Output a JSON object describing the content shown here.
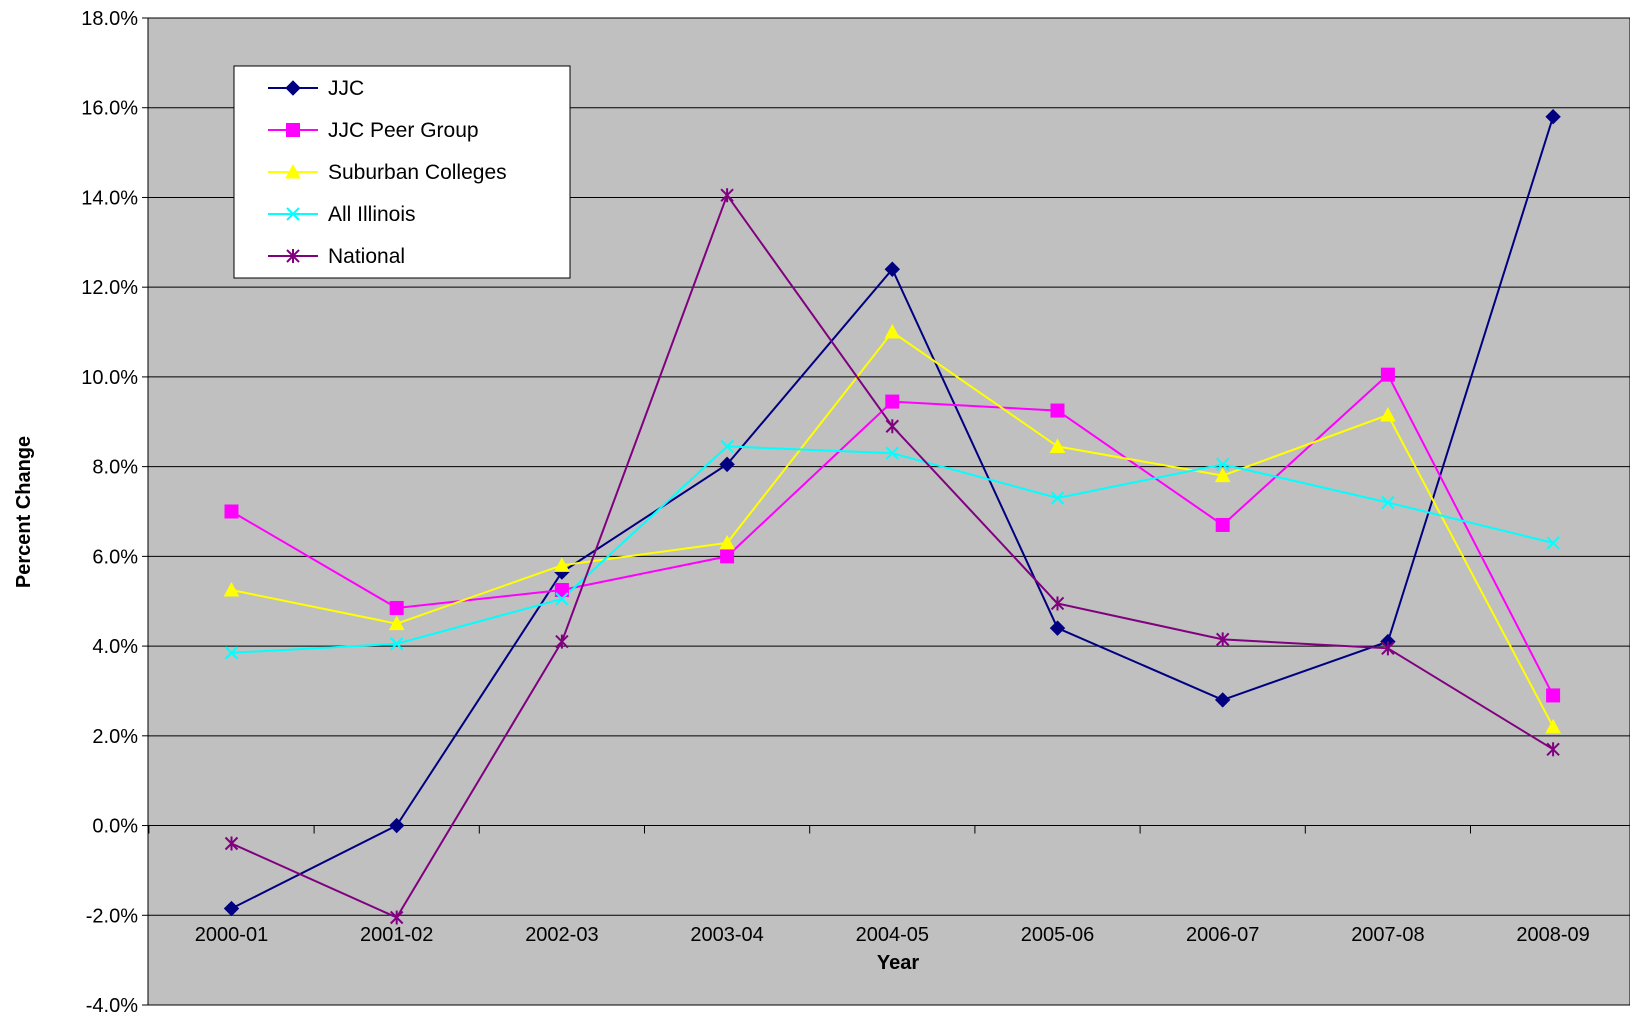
{
  "chart_data": {
    "type": "line",
    "title": "",
    "xlabel": "Year",
    "ylabel": "Percent Change",
    "categories": [
      "2000-01",
      "2001-02",
      "2002-03",
      "2003-04",
      "2004-05",
      "2005-06",
      "2006-07",
      "2007-08",
      "2008-09"
    ],
    "ylim": [
      -4.0,
      18.0
    ],
    "yticks": [
      -4.0,
      -2.0,
      0.0,
      2.0,
      4.0,
      6.0,
      8.0,
      10.0,
      12.0,
      14.0,
      16.0,
      18.0
    ],
    "ytick_format": "percent_1dp",
    "grid": true,
    "plot_background": "#c0c0c0",
    "legend_position": "top-left",
    "series": [
      {
        "name": "JJC",
        "color": "#000080",
        "marker": "diamond",
        "values": [
          -1.85,
          0.0,
          5.65,
          8.05,
          12.4,
          4.4,
          2.8,
          4.1,
          15.8
        ]
      },
      {
        "name": "JJC Peer Group",
        "color": "#ff00ff",
        "marker": "square",
        "values": [
          7.0,
          4.85,
          5.25,
          6.0,
          9.45,
          9.25,
          6.7,
          10.05,
          2.9
        ]
      },
      {
        "name": "Suburban Colleges",
        "color": "#ffff00",
        "marker": "triangle",
        "values": [
          5.25,
          4.5,
          5.8,
          6.3,
          11.0,
          8.45,
          7.8,
          9.15,
          2.2
        ]
      },
      {
        "name": "All Illinois",
        "color": "#00ffff",
        "marker": "x",
        "values": [
          3.85,
          4.05,
          5.05,
          8.45,
          8.3,
          7.3,
          8.05,
          7.2,
          6.3
        ]
      },
      {
        "name": "National",
        "color": "#800080",
        "marker": "star",
        "values": [
          -0.4,
          -2.05,
          4.1,
          14.05,
          8.9,
          4.95,
          4.15,
          3.95,
          1.7
        ]
      }
    ]
  }
}
